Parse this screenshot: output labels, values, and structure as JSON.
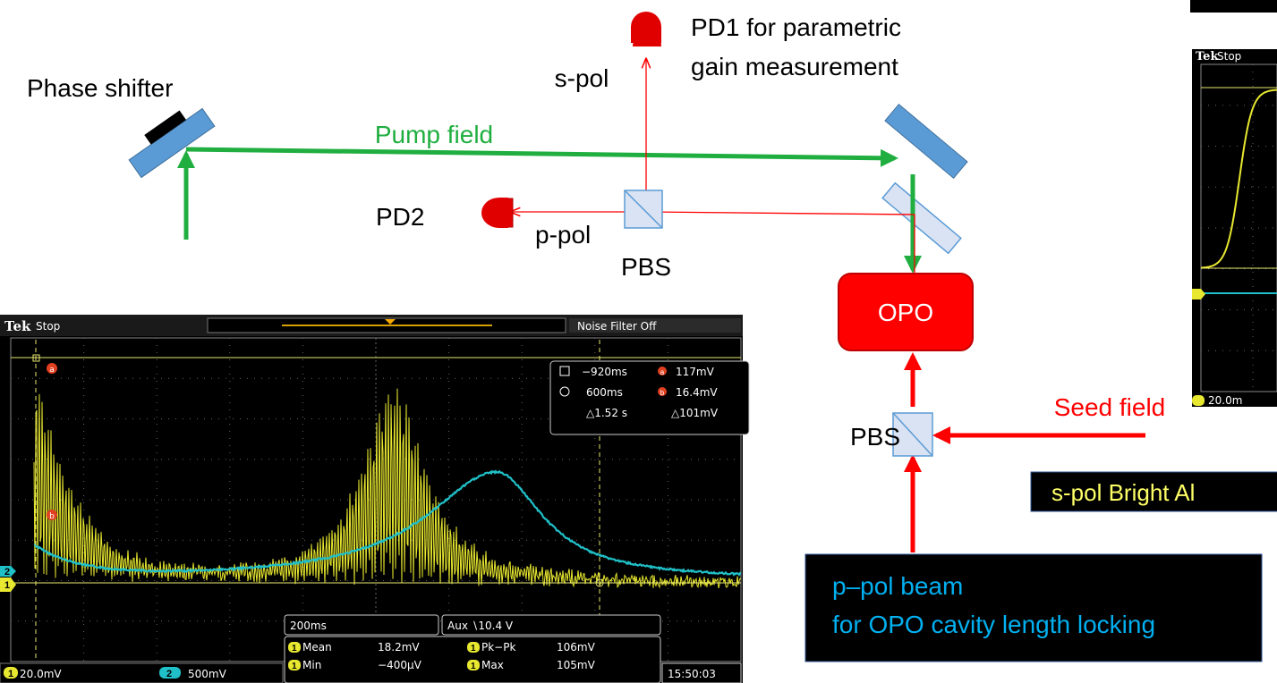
{
  "labels": {
    "phase_shifter": "Phase shifter",
    "pump_field": "Pump field",
    "s_pol": "s-pol",
    "pd1": [
      "PD1 for parametric",
      "gain measurement"
    ],
    "pd2": "PD2",
    "p_pol": "p-pol",
    "pbs_top": "PBS",
    "opo": "OPO",
    "seed_field": "Seed field",
    "pbs_bottom": "PBS",
    "s_pol_bright": "s-pol Bright Al",
    "p_pol_beam": [
      "p–pol beam",
      "for OPO cavity length locking"
    ]
  },
  "scope_left": {
    "brand": "Tek",
    "state": "Stop",
    "noise_filter": "Noise Filter Off",
    "channels": [
      "1",
      "2"
    ],
    "cursor_marks": [
      "a",
      "b"
    ],
    "cursors": [
      [
        "−920ms",
        "117mV"
      ],
      [
        "600ms",
        "16.4mV"
      ],
      [
        "△1.52 s",
        "△101mV"
      ]
    ],
    "timebase": "200ms",
    "trigger": "Aux ∖10.4 V",
    "measurements": [
      [
        "Mean",
        "18.2mV",
        "Pk−Pk",
        "106mV"
      ],
      [
        "Min",
        "−400μV",
        "Max",
        "105mV"
      ]
    ],
    "ch1_scale": "20.0mV",
    "ch2_scale": "500mV",
    "time": "15:50:03"
  },
  "scope_right": {
    "brand": "Tek",
    "state": "Stop",
    "ch1_scale": "20.0m"
  }
}
